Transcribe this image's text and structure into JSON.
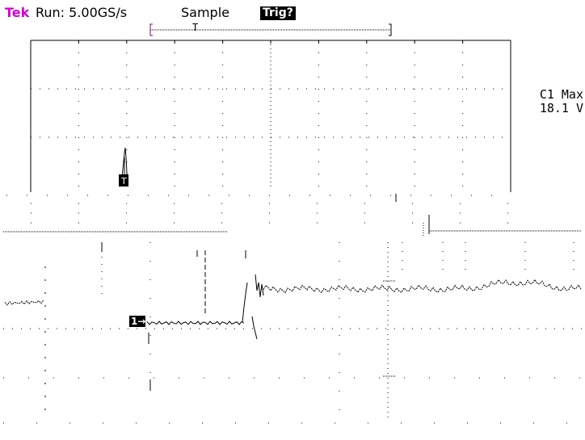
{
  "header": {
    "brand": "Tek",
    "run_status": "Run: 5.00GS/s",
    "acq_mode": "Sample",
    "trigger_status": "Trig?"
  },
  "measurement": {
    "label": "C1 Max",
    "value": "18.1 V"
  },
  "channel_marker": "1→",
  "trigger_marker": "T",
  "colors": {
    "brand": "#d000d0",
    "trace": "#000000",
    "grid": "#000000",
    "background": "#ffffff"
  }
}
